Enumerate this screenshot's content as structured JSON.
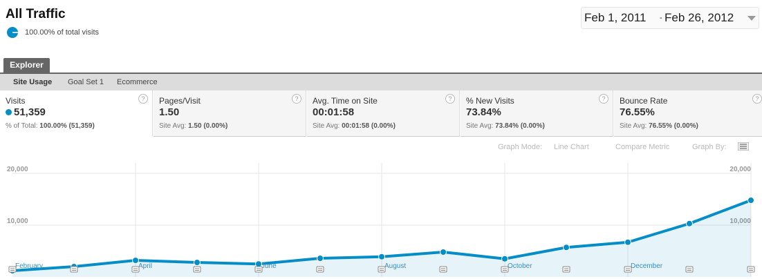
{
  "header": {
    "title": "All Traffic",
    "segment": "100.00% of total visits",
    "date_start": "Feb 1, 2011",
    "date_sep": "-",
    "date_end": "Feb 26, 2012"
  },
  "tabs": {
    "main": "Explorer",
    "sub": [
      "Site Usage",
      "Goal Set 1",
      "Ecommerce"
    ]
  },
  "metrics": [
    {
      "label": "Visits",
      "value": "51,359",
      "note_label": "% of Total:",
      "note": "100.00% (51,359)"
    },
    {
      "label": "Pages/Visit",
      "value": "1.50",
      "note_label": "Site Avg:",
      "note": "1.50 (0.00%)"
    },
    {
      "label": "Avg. Time on Site",
      "value": "00:01:58",
      "note_label": "Site Avg:",
      "note": "00:01:58 (0.00%)"
    },
    {
      "label": "% New Visits",
      "value": "73.84%",
      "note_label": "Site Avg:",
      "note": "73.84% (0.00%)"
    },
    {
      "label": "Bounce Rate",
      "value": "76.55%",
      "note_label": "Site Avg:",
      "note": "76.55% (0.00%)"
    }
  ],
  "controls": {
    "help_icon": "?",
    "graph_mode_label": "Graph Mode:",
    "graph_mode": "Line Chart",
    "compare": "Compare Metric",
    "graph_by": "Graph By:"
  },
  "chart_data": {
    "type": "line",
    "categories": [
      "February",
      null,
      "April",
      null,
      "June",
      null,
      "August",
      null,
      "October",
      null,
      "December",
      null,
      null
    ],
    "values": [
      1200,
      2000,
      3200,
      2800,
      2500,
      3600,
      3900,
      4800,
      3500,
      5700,
      6700,
      10300,
      14800
    ],
    "color": "#058dc7",
    "ylim": [
      0,
      22000
    ],
    "yticks": [
      {
        "value": 10000,
        "label": "10,000"
      },
      {
        "value": 20000,
        "label": "20,000"
      }
    ],
    "grid": true
  }
}
